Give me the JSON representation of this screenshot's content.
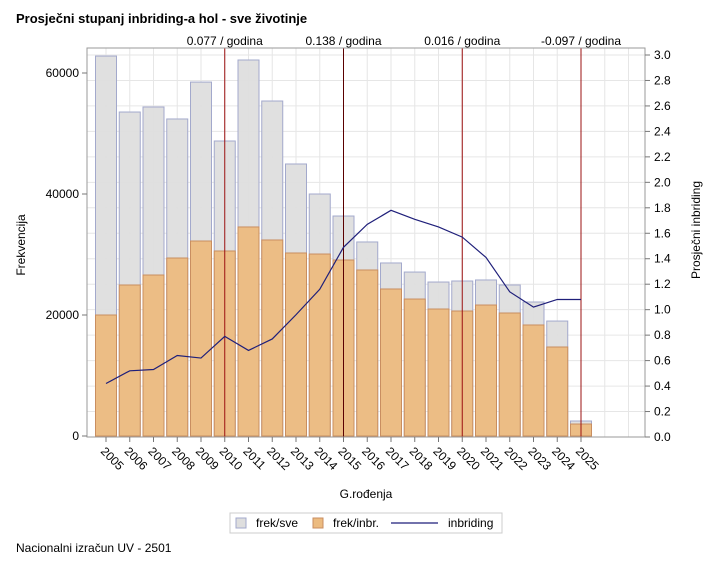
{
  "chart_data": {
    "type": "bar",
    "title": "Prosječni stupanj inbriding-a hol - sve životinje",
    "xlabel": "G.rođenja",
    "ylabel": "Frekvencija",
    "y2label": "Prosječni inbriding",
    "footnote": "Nacionalni izračun UV - 2501",
    "categories": [
      "2005",
      "2006",
      "2007",
      "2008",
      "2009",
      "2010",
      "2011",
      "2012",
      "2013",
      "2014",
      "2015",
      "2016",
      "2017",
      "2018",
      "2019",
      "2020",
      "2021",
      "2022",
      "2023",
      "2024",
      "2025"
    ],
    "ylim": [
      0,
      60000
    ],
    "yticks": [
      "0",
      "20000",
      "40000",
      "60000"
    ],
    "y2lim": [
      0,
      3.0
    ],
    "y2ticks": [
      "0.0",
      "0.2",
      "0.4",
      "0.6",
      "0.8",
      "1.0",
      "1.2",
      "1.4",
      "1.6",
      "1.8",
      "2.0",
      "2.2",
      "2.4",
      "2.6",
      "2.8",
      "3.0"
    ],
    "series": [
      {
        "name": "frek/sve",
        "type": "bar",
        "color": "#dedede",
        "edge": "#a3a9cc",
        "values": [
          62800,
          53550,
          54380,
          52400,
          58500,
          48760,
          62150,
          55370,
          44960,
          40000,
          36360,
          32070,
          28600,
          27100,
          25450,
          25620,
          25790,
          24960,
          22150,
          19000,
          2480
        ]
      },
      {
        "name": "frek/inbr.",
        "type": "bar",
        "color": "#ecbb80",
        "edge": "#c98e60",
        "values": [
          20000,
          24960,
          26610,
          29420,
          32230,
          30580,
          34550,
          32400,
          30250,
          30080,
          29090,
          27440,
          24300,
          22640,
          20990,
          20660,
          21650,
          20330,
          18350,
          14710,
          1980
        ]
      },
      {
        "name": "inbriding",
        "type": "line",
        "axis": "right",
        "color": "#1f1f7a",
        "values": [
          0.42,
          0.52,
          0.53,
          0.64,
          0.62,
          0.79,
          0.68,
          0.77,
          0.96,
          1.16,
          1.49,
          1.67,
          1.78,
          1.71,
          1.65,
          1.57,
          1.41,
          1.14,
          1.02,
          1.08,
          1.08
        ]
      }
    ],
    "reference_lines": [
      {
        "x": "2010",
        "label": "0.077 / godina"
      },
      {
        "x": "2015",
        "label": "0.138 / godina"
      },
      {
        "x": "2020",
        "label": "0.016 / godina"
      },
      {
        "x": "2025",
        "label": "-0.097 / godina"
      }
    ],
    "legend_placement": "bottom",
    "grid": true
  }
}
